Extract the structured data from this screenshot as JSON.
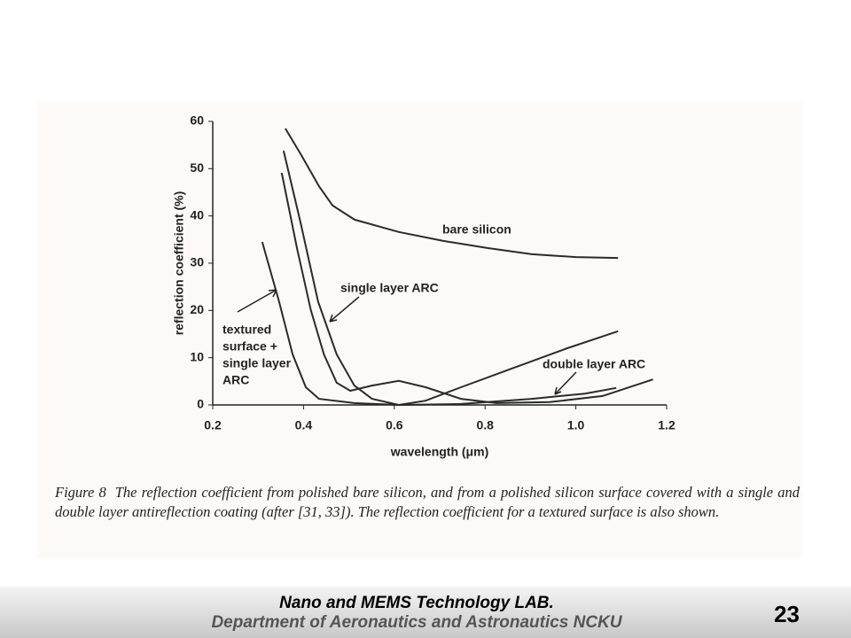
{
  "chart_data": {
    "type": "line",
    "xlabel": "wavelength (μm)",
    "ylabel": "reflection coefficient (%)",
    "xlim": [
      0.2,
      1.2
    ],
    "ylim": [
      0,
      60
    ],
    "xticks": [
      0.2,
      0.4,
      0.6,
      0.8,
      {
        "value": 1,
        "label": "1.0"
      },
      1.2
    ],
    "yticks": [
      0,
      10,
      20,
      30,
      40,
      50,
      60
    ],
    "series": [
      {
        "name": "bare silicon",
        "color": "#2a2a2a",
        "x": [
          0.36,
          0.395,
          0.434,
          0.464,
          0.5125,
          0.61,
          0.708,
          0.805,
          0.903,
          1.0,
          1.093
        ],
        "values": [
          58.5,
          52.9,
          46.3,
          42.2,
          39.2,
          36.6,
          34.7,
          33.2,
          31.9,
          31.3,
          31.1
        ]
      },
      {
        "name": "single layer ARC",
        "color": "#2a2a2a",
        "x": [
          0.356,
          0.393,
          0.432,
          0.473,
          0.512,
          0.551,
          0.61,
          0.669,
          0.747,
          0.864,
          0.981,
          1.093
        ],
        "values": [
          53.8,
          38.8,
          21.9,
          10.7,
          4.1,
          1.3,
          0,
          0.9,
          3.75,
          7.9,
          12,
          15.6
        ]
      },
      {
        "name": "textured surface + single layer ARC",
        "color": "#2a2a2a",
        "x": [
          0.352,
          0.3855,
          0.416,
          0.445,
          0.473,
          0.503,
          0.551,
          0.61,
          0.669,
          0.747,
          0.825,
          0.942,
          1.059,
          1.17
        ],
        "values": [
          49.1,
          33.2,
          20.1,
          10.7,
          4.7,
          3,
          4.1,
          5.1,
          3.75,
          1.3,
          0.4,
          0.6,
          1.9,
          5.4
        ]
      },
      {
        "name": "double layer ARC",
        "color": "#2a2a2a",
        "x": [
          0.309,
          0.346,
          0.376,
          0.405,
          0.434,
          0.512,
          0.61,
          0.747,
          0.903,
          1.02,
          1.089
        ],
        "values": [
          34.5,
          21.9,
          10.7,
          3.75,
          1.3,
          0.4,
          0,
          0.2,
          1.3,
          2.4,
          3.6
        ]
      }
    ],
    "annotations": [
      "bare silicon",
      "single layer ARC",
      [
        "textured",
        "surface +",
        "single layer",
        "ARC"
      ],
      "double layer ARC"
    ]
  },
  "figure_label": "Figure 8",
  "caption": "The reflection coefficient from polished bare silicon, and from a polished silicon surface covered with a single and double layer antireflection coating (after [31, 33]). The reflection coefficient for a textured surface is also shown.",
  "footer": {
    "lab": "Nano and MEMS Technology LAB.",
    "department": "Department of Aeronautics and Astronautics NCKU",
    "page": "23"
  }
}
